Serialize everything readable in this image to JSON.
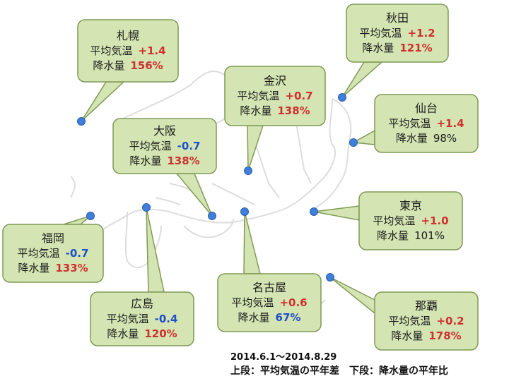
{
  "period": "2014.6.1〜2014.8.29",
  "legend": "上段：平均気温の平年差　下段：降水量の平年比",
  "labels": {
    "temp": "平均気温",
    "precip": "降水量"
  },
  "colors": {
    "callout_fill": "#d4e5b3",
    "callout_border": "#7f9a56",
    "marker": "#3f7fd9",
    "positive": "#d03030",
    "negative": "#1e4fc8",
    "map_line": "#dddddd"
  },
  "cities": [
    {
      "name": "札幌",
      "temp": "+1.4",
      "temp_kind": "pos",
      "precip": "156%",
      "precip_kind": "pos"
    },
    {
      "name": "秋田",
      "temp": "+1.2",
      "temp_kind": "pos",
      "precip": "121%",
      "precip_kind": "pos"
    },
    {
      "name": "金沢",
      "temp": "+0.7",
      "temp_kind": "pos",
      "precip": "138%",
      "precip_kind": "pos"
    },
    {
      "name": "仙台",
      "temp": "+1.4",
      "temp_kind": "pos",
      "precip": "98%",
      "precip_kind": "plain"
    },
    {
      "name": "大阪",
      "temp": "-0.7",
      "temp_kind": "neg",
      "precip": "138%",
      "precip_kind": "pos"
    },
    {
      "name": "東京",
      "temp": "+1.0",
      "temp_kind": "pos",
      "precip": "101%",
      "precip_kind": "plain"
    },
    {
      "name": "福岡",
      "temp": "-0.7",
      "temp_kind": "neg",
      "precip": "133%",
      "precip_kind": "pos"
    },
    {
      "name": "名古屋",
      "temp": "+0.6",
      "temp_kind": "pos",
      "precip": "67%",
      "precip_kind": "neg"
    },
    {
      "name": "広島",
      "temp": "-0.4",
      "temp_kind": "neg",
      "precip": "120%",
      "precip_kind": "pos"
    },
    {
      "name": "那覇",
      "temp": "+0.2",
      "temp_kind": "pos",
      "precip": "178%",
      "precip_kind": "pos"
    }
  ]
}
